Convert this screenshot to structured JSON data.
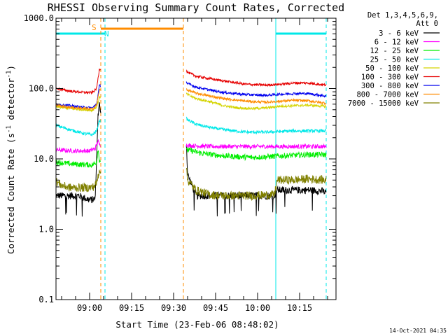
{
  "chart_data": {
    "type": "line",
    "title": "RHESSI Observing Summary Count Rates, Corrected",
    "xlabel": "Start Time (23-Feb-06 08:48:02)",
    "ylabel_main": "Corrected Count Rate (s",
    "ylabel_sup": "-1",
    "ylabel_mid": " detector",
    "ylabel_end": ")",
    "yscale": "log",
    "ylim": [
      0.1,
      1000
    ],
    "xlim_minutes": [
      0,
      100
    ],
    "x_tick_labels": [
      "09:00",
      "09:15",
      "09:30",
      "09:45",
      "10:00",
      "10:15"
    ],
    "y_tick_labels": [
      "0.1",
      "1.0",
      "10.0",
      "100.0",
      "1000.0"
    ],
    "legend_header": [
      "Det 1,3,4,5,6,9,",
      "Att 0"
    ],
    "legend_placement": "right",
    "timestamp": "14-Oct-2021 04:35",
    "flag_labels": {
      "saa": "S",
      "night": "N"
    },
    "colors": {
      "night": "#00e8e8",
      "saa": "#ff8c00",
      "axis": "#000000"
    },
    "intervals": {
      "night": [
        [
          0,
          17.5
        ],
        [
          78.5,
          96.5
        ]
      ],
      "saa": [
        [
          16,
          45.5
        ]
      ]
    },
    "series": [
      {
        "name": "3 - 6 keV",
        "color": "#000000",
        "values": [
          [
            0,
            3
          ],
          [
            8,
            3
          ],
          [
            12,
            2.6
          ],
          [
            14,
            2.7
          ],
          [
            15,
            40
          ],
          [
            15.5,
            60
          ],
          [
            16,
            45
          ],
          [
            46.5,
            20
          ],
          [
            47,
            6
          ],
          [
            50,
            3
          ],
          [
            55,
            3
          ],
          [
            60,
            3
          ],
          [
            70,
            3
          ],
          [
            78,
            3
          ],
          [
            79,
            3.6
          ],
          [
            90,
            3.6
          ],
          [
            95,
            3.5
          ],
          [
            96.5,
            3.3
          ]
        ]
      },
      {
        "name": "6 - 12 keV",
        "color": "#ff00ff",
        "values": [
          [
            0,
            13.5
          ],
          [
            6,
            13
          ],
          [
            12,
            13
          ],
          [
            14,
            14
          ],
          [
            15,
            18
          ],
          [
            15.5,
            16
          ],
          [
            46.5,
            16
          ],
          [
            47,
            15.5
          ],
          [
            55,
            15
          ],
          [
            65,
            15
          ],
          [
            75,
            15
          ],
          [
            85,
            15
          ],
          [
            96.5,
            15
          ]
        ]
      },
      {
        "name": "12 - 25 keV",
        "color": "#00ee00",
        "values": [
          [
            0,
            9
          ],
          [
            5,
            8.5
          ],
          [
            10,
            8.3
          ],
          [
            13,
            8.2
          ],
          [
            14.5,
            9
          ],
          [
            15,
            14
          ],
          [
            15.5,
            9.5
          ],
          [
            46.5,
            13
          ],
          [
            47,
            13.5
          ],
          [
            52,
            12
          ],
          [
            60,
            11
          ],
          [
            70,
            10.5
          ],
          [
            80,
            11
          ],
          [
            90,
            11.5
          ],
          [
            96.5,
            11.5
          ]
        ]
      },
      {
        "name": "25 - 50 keV",
        "color": "#00e8e8",
        "values": [
          [
            0,
            30
          ],
          [
            5,
            26
          ],
          [
            10,
            23
          ],
          [
            13,
            22
          ],
          [
            14.5,
            25
          ],
          [
            15.5,
            35
          ],
          [
            46.5,
            38
          ],
          [
            47,
            36
          ],
          [
            50,
            31
          ],
          [
            55,
            28
          ],
          [
            60,
            26
          ],
          [
            68,
            24
          ],
          [
            75,
            24
          ],
          [
            85,
            25
          ],
          [
            96.5,
            25
          ]
        ]
      },
      {
        "name": "50 - 100 keV",
        "color": "#d4d400",
        "values": [
          [
            0,
            55
          ],
          [
            5,
            52
          ],
          [
            10,
            50
          ],
          [
            13,
            49
          ],
          [
            14.5,
            55
          ],
          [
            15.5,
            75
          ],
          [
            46.5,
            85
          ],
          [
            47,
            82
          ],
          [
            50,
            72
          ],
          [
            55,
            65
          ],
          [
            60,
            57
          ],
          [
            65,
            53
          ],
          [
            70,
            52
          ],
          [
            75,
            53
          ],
          [
            80,
            56
          ],
          [
            85,
            57
          ],
          [
            90,
            58
          ],
          [
            96.5,
            56
          ]
        ]
      },
      {
        "name": "100 - 300 keV",
        "color": "#e60000",
        "values": [
          [
            0,
            100
          ],
          [
            5,
            92
          ],
          [
            10,
            88
          ],
          [
            13,
            88
          ],
          [
            14.5,
            100
          ],
          [
            15.5,
            190
          ],
          [
            46.5,
            180
          ],
          [
            47,
            170
          ],
          [
            50,
            150
          ],
          [
            55,
            138
          ],
          [
            60,
            128
          ],
          [
            68,
            115
          ],
          [
            75,
            112
          ],
          [
            80,
            115
          ],
          [
            85,
            120
          ],
          [
            90,
            120
          ],
          [
            96.5,
            112
          ]
        ]
      },
      {
        "name": "300 - 800 keV",
        "color": "#0000ee",
        "values": [
          [
            0,
            60
          ],
          [
            5,
            57
          ],
          [
            10,
            54
          ],
          [
            13,
            53
          ],
          [
            14.5,
            60
          ],
          [
            15.5,
            110
          ],
          [
            46.5,
            125
          ],
          [
            47,
            118
          ],
          [
            50,
            105
          ],
          [
            55,
            95
          ],
          [
            60,
            88
          ],
          [
            68,
            82
          ],
          [
            75,
            80
          ],
          [
            80,
            83
          ],
          [
            85,
            85
          ],
          [
            90,
            85
          ],
          [
            96.5,
            78
          ]
        ]
      },
      {
        "name": "800 - 7000 keV",
        "color": "#ff8c00",
        "values": [
          [
            0,
            58
          ],
          [
            5,
            54
          ],
          [
            10,
            52
          ],
          [
            13,
            51
          ],
          [
            14.5,
            58
          ],
          [
            15.5,
            95
          ],
          [
            46.5,
            100
          ],
          [
            47,
            95
          ],
          [
            50,
            86
          ],
          [
            55,
            78
          ],
          [
            60,
            72
          ],
          [
            68,
            66
          ],
          [
            75,
            64
          ],
          [
            80,
            66
          ],
          [
            85,
            68
          ],
          [
            90,
            67
          ],
          [
            96.5,
            62
          ]
        ]
      },
      {
        "name": "7000 - 15000 keV",
        "color": "#808000",
        "values": [
          [
            0,
            4.8
          ],
          [
            2,
            4.2
          ],
          [
            5,
            3.9
          ],
          [
            10,
            3.9
          ],
          [
            13,
            3.9
          ],
          [
            14.5,
            4.5
          ],
          [
            15.5,
            7
          ],
          [
            46.5,
            7.5
          ],
          [
            47,
            5
          ],
          [
            50,
            3.6
          ],
          [
            55,
            3.1
          ],
          [
            60,
            3
          ],
          [
            70,
            3
          ],
          [
            78,
            3.1
          ],
          [
            79,
            5
          ],
          [
            85,
            5
          ],
          [
            90,
            5.2
          ],
          [
            96.5,
            5
          ]
        ]
      }
    ]
  }
}
